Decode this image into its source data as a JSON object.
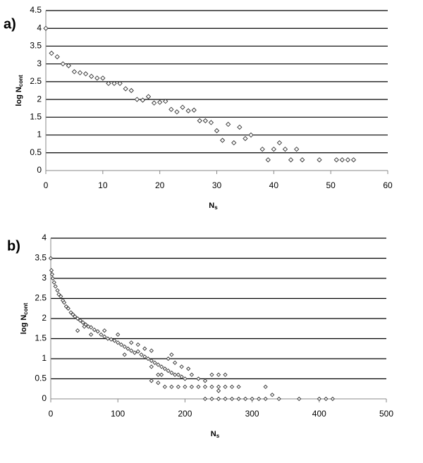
{
  "chart_data": [
    {
      "type": "scatter",
      "panel": "a)",
      "ylabel": {
        "main": "log N",
        "sub": "cont"
      },
      "xlabel": {
        "main": "N",
        "sub": "s"
      },
      "xlim": [
        0,
        60
      ],
      "ylim": [
        0,
        4.5
      ],
      "xticks": [
        0,
        10,
        20,
        30,
        40,
        50,
        60
      ],
      "yticks": [
        0,
        0.5,
        1,
        1.5,
        2,
        2.5,
        3,
        3.5,
        4,
        4.5
      ],
      "grid": true,
      "color": "#333333",
      "x": [
        0,
        1,
        2,
        3,
        4,
        5,
        6,
        7,
        8,
        9,
        10,
        11,
        12,
        13,
        14,
        15,
        16,
        17,
        18,
        19,
        20,
        21,
        22,
        23,
        24,
        25,
        26,
        27,
        28,
        29,
        30,
        31,
        32,
        33,
        34,
        35,
        36,
        38,
        39,
        40,
        41,
        42,
        43,
        44,
        45,
        48,
        51,
        52,
        53,
        54
      ],
      "values": [
        4,
        3.3,
        3.2,
        3.0,
        2.95,
        2.78,
        2.75,
        2.72,
        2.65,
        2.6,
        2.6,
        2.45,
        2.45,
        2.45,
        2.3,
        2.25,
        2.0,
        1.98,
        2.08,
        1.9,
        1.92,
        1.95,
        1.72,
        1.65,
        1.78,
        1.68,
        1.7,
        1.4,
        1.4,
        1.35,
        1.12,
        0.85,
        1.3,
        0.78,
        1.22,
        0.9,
        1.0,
        0.6,
        0.3,
        0.6,
        0.78,
        0.6,
        0.3,
        0.6,
        0.3,
        0.3,
        0.3,
        0.3,
        0.3,
        0.3
      ]
    },
    {
      "type": "scatter",
      "panel": "b)",
      "ylabel": {
        "main": "log N",
        "sub": "cont"
      },
      "xlabel": {
        "main": "N",
        "sub": "s"
      },
      "xlim": [
        0,
        500
      ],
      "ylim": [
        0,
        4
      ],
      "xticks": [
        0,
        100,
        200,
        300,
        400,
        500
      ],
      "yticks": [
        0,
        0.5,
        1,
        1.5,
        2,
        2.5,
        3,
        3.5,
        4
      ],
      "grid": true,
      "color": "#333333",
      "x": [
        0,
        1,
        2,
        3,
        5,
        7,
        10,
        12,
        15,
        18,
        20,
        23,
        26,
        30,
        33,
        36,
        40,
        44,
        48,
        52,
        56,
        60,
        65,
        70,
        75,
        80,
        85,
        90,
        95,
        100,
        105,
        110,
        115,
        120,
        125,
        130,
        135,
        140,
        145,
        150,
        155,
        160,
        165,
        170,
        175,
        180,
        185,
        190,
        195,
        200,
        210,
        220,
        230,
        240,
        250,
        260,
        170,
        180,
        190,
        200,
        210,
        220,
        230,
        240,
        250,
        260,
        270,
        280,
        320,
        160,
        165,
        175,
        185,
        195,
        205,
        180,
        150,
        140,
        130,
        120,
        100,
        80,
        60,
        50,
        40,
        110,
        150,
        160,
        150,
        230,
        240,
        250,
        260,
        270,
        280,
        290,
        300,
        310,
        320,
        340,
        370,
        400,
        410,
        420,
        330,
        250
      ],
      "values": [
        3.5,
        3.2,
        3.1,
        3.0,
        2.9,
        2.8,
        2.7,
        2.6,
        2.55,
        2.45,
        2.4,
        2.3,
        2.25,
        2.15,
        2.1,
        2.05,
        2.0,
        1.95,
        1.9,
        1.85,
        1.8,
        1.78,
        1.72,
        1.68,
        1.6,
        1.55,
        1.5,
        1.48,
        1.45,
        1.4,
        1.35,
        1.3,
        1.25,
        1.2,
        1.15,
        1.18,
        1.1,
        1.05,
        1.0,
        0.95,
        0.9,
        0.85,
        0.8,
        0.75,
        0.7,
        0.65,
        0.6,
        0.6,
        0.55,
        0.5,
        0.6,
        0.5,
        0.45,
        0.6,
        0.6,
        0.6,
        0.3,
        0.3,
        0.3,
        0.3,
        0.3,
        0.3,
        0.3,
        0.3,
        0.3,
        0.3,
        0.3,
        0.3,
        0.3,
        0.6,
        0.6,
        1.0,
        0.9,
        0.8,
        0.75,
        1.1,
        1.2,
        1.25,
        1.35,
        1.4,
        1.6,
        1.7,
        1.6,
        1.8,
        1.7,
        1.1,
        0.8,
        0.4,
        0.45,
        0,
        0,
        0,
        0,
        0,
        0,
        0,
        0,
        0,
        0,
        0,
        0,
        0,
        0,
        0,
        0.1,
        0.2
      ]
    }
  ]
}
